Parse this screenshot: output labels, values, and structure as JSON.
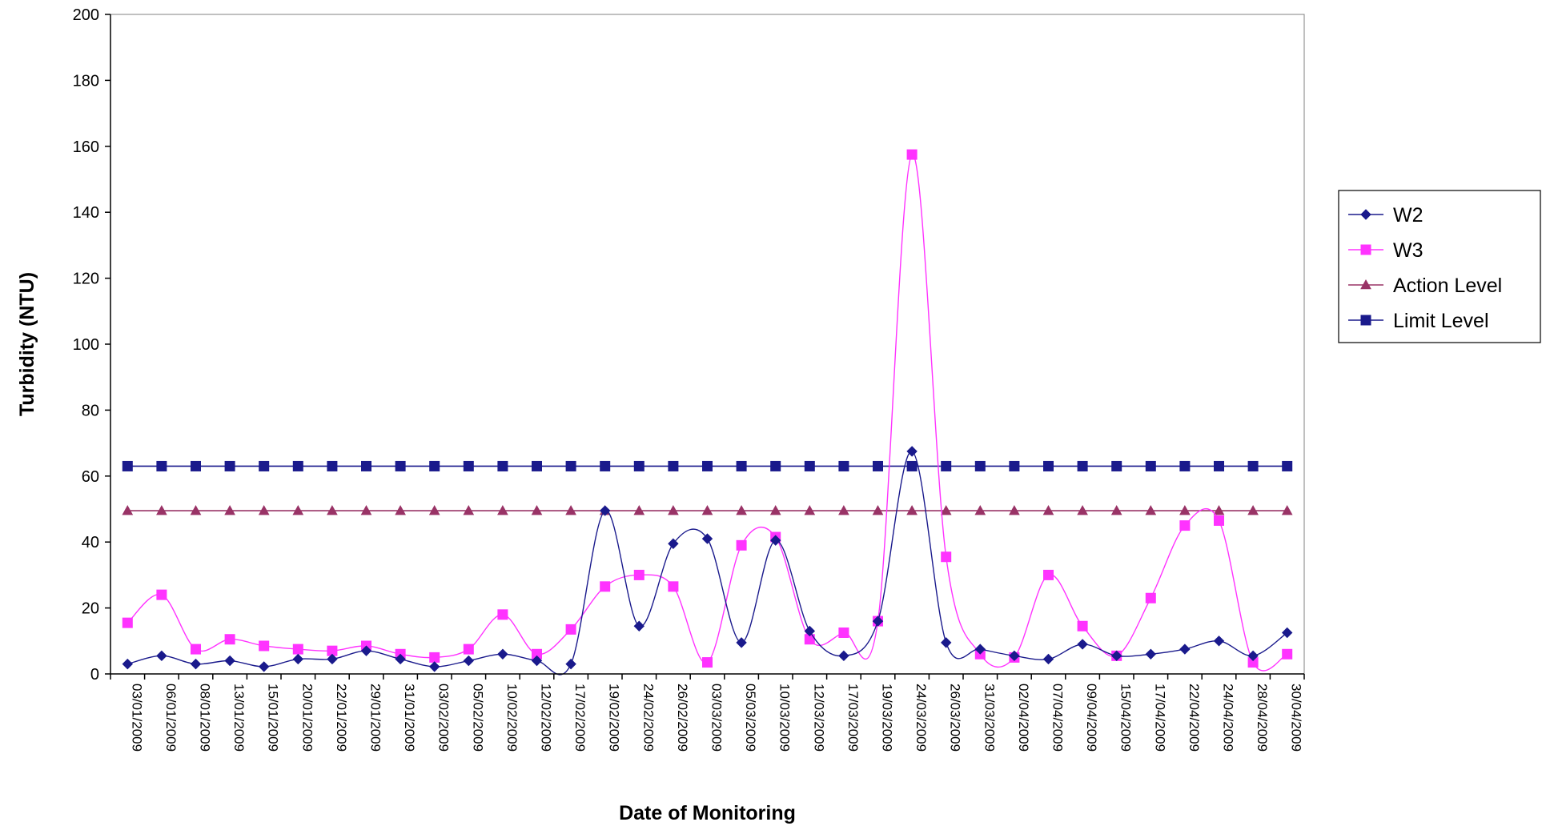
{
  "chart_data": {
    "type": "line",
    "title": "",
    "xlabel": "Date of Monitoring",
    "ylabel": "Turbidity (NTU)",
    "ylim": [
      0,
      200
    ],
    "yticks": [
      0,
      20,
      40,
      60,
      80,
      100,
      120,
      140,
      160,
      180,
      200
    ],
    "grid": false,
    "legend_position": "right",
    "categories": [
      "03/01/2009",
      "06/01/2009",
      "08/01/2009",
      "13/01/2009",
      "15/01/2009",
      "20/01/2009",
      "22/01/2009",
      "29/01/2009",
      "31/01/2009",
      "03/02/2009",
      "05/02/2009",
      "10/02/2009",
      "12/02/2009",
      "17/02/2009",
      "19/02/2009",
      "24/02/2009",
      "26/02/2009",
      "03/03/2009",
      "05/03/2009",
      "10/03/2009",
      "12/03/2009",
      "17/03/2009",
      "19/03/2009",
      "24/03/2009",
      "26/03/2009",
      "31/03/2009",
      "02/04/2009",
      "07/04/2009",
      "09/04/2009",
      "15/04/2009",
      "17/04/2009",
      "22/04/2009",
      "24/04/2009",
      "28/04/2009",
      "30/04/2009"
    ],
    "series": [
      {
        "name": "W2",
        "color": "#1a1a8c",
        "marker": "diamond",
        "smooth": true,
        "values": [
          3,
          5.5,
          3,
          4,
          2.2,
          4.5,
          4.5,
          7,
          4.5,
          2.2,
          4,
          6,
          4,
          3,
          49.5,
          14.5,
          39.5,
          41,
          9.5,
          40.5,
          13,
          5.5,
          16,
          67.5,
          9.5,
          7.5,
          5.5,
          4.5,
          9,
          5.5,
          6,
          7.5,
          10,
          5.5,
          12.5
        ]
      },
      {
        "name": "W3",
        "color": "#ff33ff",
        "marker": "square",
        "smooth": true,
        "values": [
          15.5,
          24,
          7.5,
          10.5,
          8.5,
          7.5,
          7,
          8.5,
          6,
          5,
          7.5,
          18,
          6,
          13.5,
          26.5,
          30,
          26.5,
          3.5,
          39,
          41.5,
          10.5,
          12.5,
          16,
          157.5,
          35.5,
          6,
          5,
          30,
          14.5,
          5.5,
          23,
          45,
          46.5,
          3.5,
          6
        ]
      },
      {
        "name": "Action Level",
        "color": "#993366",
        "marker": "triangle",
        "smooth": false,
        "values": [
          49.5,
          49.5,
          49.5,
          49.5,
          49.5,
          49.5,
          49.5,
          49.5,
          49.5,
          49.5,
          49.5,
          49.5,
          49.5,
          49.5,
          49.5,
          49.5,
          49.5,
          49.5,
          49.5,
          49.5,
          49.5,
          49.5,
          49.5,
          49.5,
          49.5,
          49.5,
          49.5,
          49.5,
          49.5,
          49.5,
          49.5,
          49.5,
          49.5,
          49.5,
          49.5
        ]
      },
      {
        "name": "Limit Level",
        "color": "#1a1a8c",
        "marker": "square",
        "smooth": false,
        "values": [
          63,
          63,
          63,
          63,
          63,
          63,
          63,
          63,
          63,
          63,
          63,
          63,
          63,
          63,
          63,
          63,
          63,
          63,
          63,
          63,
          63,
          63,
          63,
          63,
          63,
          63,
          63,
          63,
          63,
          63,
          63,
          63,
          63,
          63,
          63
        ]
      }
    ]
  }
}
